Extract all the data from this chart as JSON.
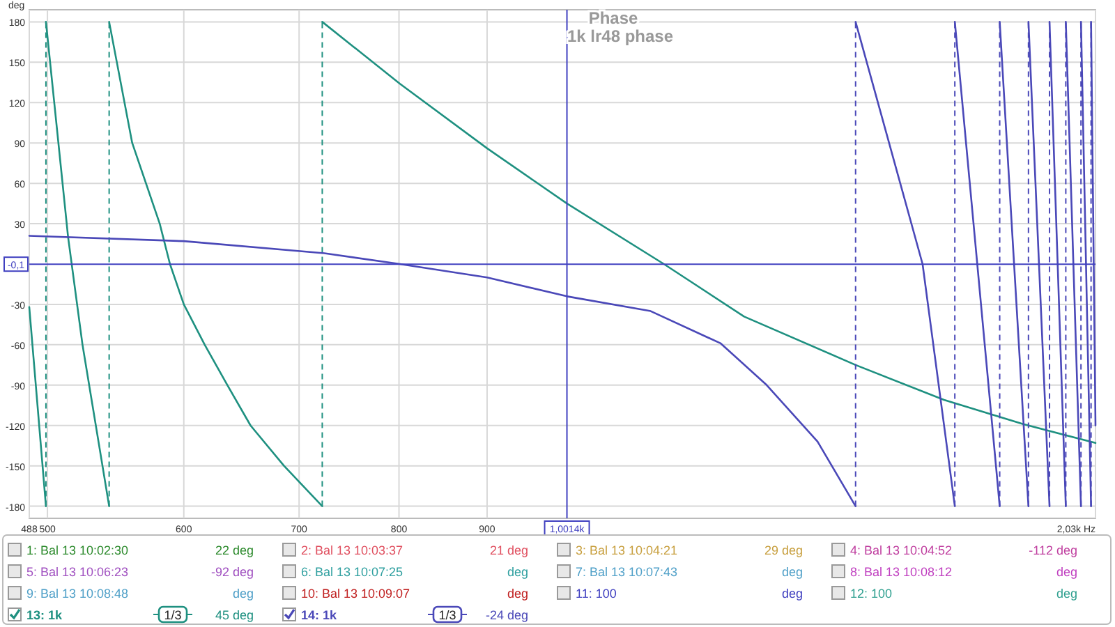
{
  "chart_data": {
    "type": "line",
    "title": "Phase",
    "subtitle": "1k lr48 phase",
    "ylabel": "deg",
    "log": "x",
    "xlim": [
      488,
      2030
    ],
    "ylim": [
      -189,
      189
    ],
    "xticks": [
      488,
      500,
      600,
      700,
      800,
      900,
      {
        "value": 2030,
        "label": "2,03k Hz"
      }
    ],
    "yticks": [
      180,
      150,
      120,
      90,
      60,
      30,
      -30,
      -60,
      -90,
      -120,
      -150,
      -180
    ],
    "grid": true,
    "legend": "bottom",
    "marker": "none",
    "line_style": "solid",
    "ref_lines": [
      {
        "axis": "x",
        "value": 1001.4,
        "label": "1,0014k",
        "color": "#4040c0"
      },
      {
        "axis": "y",
        "value": -0.1,
        "label": "-0,1",
        "color": "#4040c0"
      }
    ],
    "series": [
      {
        "name": "13: 1k",
        "color": "#1e9080",
        "x": [
          488,
          499,
          499,
          514,
          524,
          543,
          543,
          560,
          581,
          589,
          600,
          617,
          636,
          656,
          686,
          722,
          722,
          801,
          900,
          1001.4,
          1140,
          1269,
          1473,
          1658,
          1843,
          2030
        ],
        "values": [
          -32,
          -180,
          180,
          20,
          -60,
          -180,
          180,
          90,
          30,
          0,
          -30,
          -60,
          -90,
          -120,
          -150,
          -180,
          180,
          134,
          86,
          45,
          0,
          -39,
          -75,
          -101,
          -119,
          -133
        ]
      },
      {
        "name": "14: 1k",
        "color": "#4a48b8",
        "x": [
          488,
          600,
          724,
          801,
          900,
          1001.4,
          1120,
          1230,
          1308,
          1400,
          1473,
          1473,
          1611,
          1682,
          1682,
          1786,
          1786,
          1856,
          1856,
          1909,
          1909,
          1951,
          1951,
          1991,
          1991,
          2018,
          2018,
          2030
        ],
        "values": [
          21,
          17,
          8,
          0,
          -10,
          -24,
          -35,
          -59,
          -90,
          -132,
          -180,
          180,
          0,
          -180,
          180,
          -180,
          180,
          -180,
          180,
          -180,
          180,
          -180,
          180,
          -180,
          180,
          -180,
          180,
          -120
        ]
      }
    ],
    "annotations": [
      "1: Bal 13 10:02:30",
      "2: Bal 13 10:03:37",
      "3: Bal 13 10:04:21",
      "4: Bal 13 10:04:52",
      "5: Bal 13 10:06:23",
      "6: Bal 13 10:07:25",
      "7: Bal 13 10:07:43",
      "8: Bal 13 10:08:12",
      "9: Bal 13 10:08:48",
      "10: Bal 13 10:09:07",
      "11: 100",
      "12: 100",
      "22 deg",
      "21 deg",
      "29 deg",
      "-112 deg",
      "-92 deg",
      "deg",
      "deg",
      "deg",
      "deg",
      "deg",
      "deg",
      "deg",
      "45 deg",
      "-24 deg",
      "1/3",
      "1/3"
    ]
  }
}
